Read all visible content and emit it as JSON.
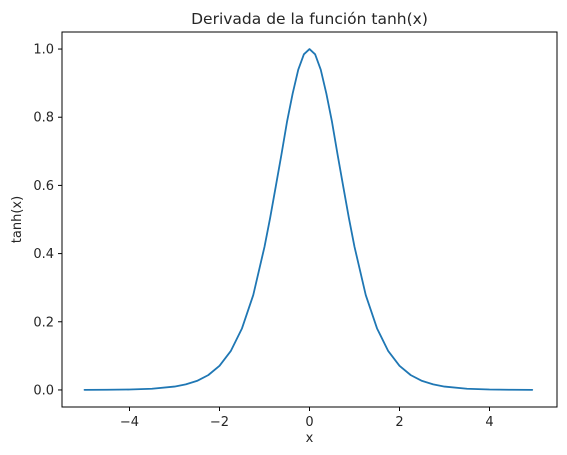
{
  "chart_data": {
    "type": "line",
    "title": "Derivada de la función tanh(x)",
    "xlabel": "x",
    "ylabel": "tanh(x)",
    "xlim": [
      -5.5,
      5.5
    ],
    "ylim": [
      -0.05,
      1.05
    ],
    "xticks": [
      -4,
      -2,
      0,
      2,
      4
    ],
    "xtick_labels": [
      "−4",
      "−2",
      "0",
      "2",
      "4"
    ],
    "yticks": [
      0.0,
      0.2,
      0.4,
      0.6,
      0.8,
      1.0
    ],
    "ytick_labels": [
      "0.0",
      "0.2",
      "0.4",
      "0.6",
      "0.8",
      "1.0"
    ],
    "grid": false,
    "series": [
      {
        "color": "#1f77b4",
        "x": [
          -5.0,
          -4.5,
          -4.0,
          -3.5,
          -3.0,
          -2.75,
          -2.5,
          -2.25,
          -2.0,
          -1.75,
          -1.5,
          -1.25,
          -1.0,
          -0.875,
          -0.75,
          -0.625,
          -0.5,
          -0.375,
          -0.25,
          -0.125,
          0.0,
          0.125,
          0.25,
          0.375,
          0.5,
          0.625,
          0.75,
          0.875,
          1.0,
          1.25,
          1.5,
          1.75,
          2.0,
          2.25,
          2.5,
          2.75,
          3.0,
          3.5,
          4.0,
          4.5,
          4.95
        ],
        "y": [
          0.0002,
          0.0005,
          0.0013,
          0.0036,
          0.0099,
          0.0163,
          0.0266,
          0.0435,
          0.0707,
          0.114,
          0.1807,
          0.2784,
          0.42,
          0.5045,
          0.5966,
          0.6895,
          0.7864,
          0.8691,
          0.9395,
          0.9845,
          1.0,
          0.9845,
          0.9395,
          0.8691,
          0.7864,
          0.6895,
          0.5966,
          0.5045,
          0.42,
          0.2784,
          0.1807,
          0.114,
          0.0707,
          0.0435,
          0.0266,
          0.0163,
          0.0099,
          0.0036,
          0.0013,
          0.0005,
          0.0002
        ]
      }
    ]
  }
}
